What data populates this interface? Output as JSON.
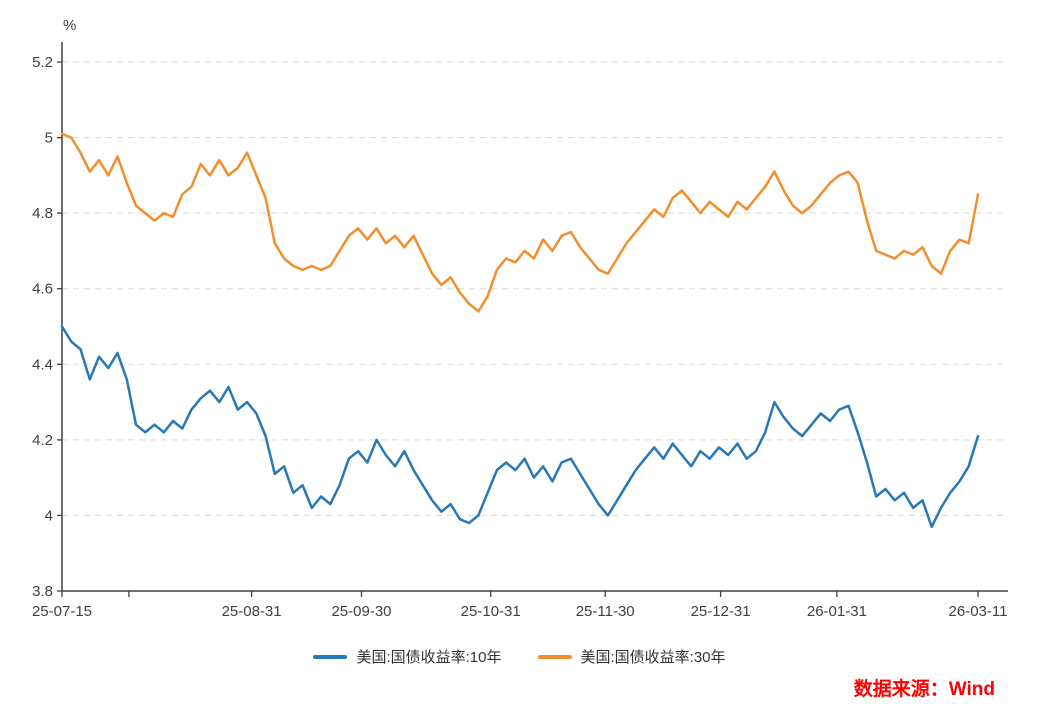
{
  "chart_data": {
    "type": "line",
    "title": "",
    "ylabel": "%",
    "xlabel": "",
    "ylim": [
      3.8,
      5.2
    ],
    "yticks": [
      3.8,
      4.0,
      4.2,
      4.4,
      4.6,
      4.8,
      5.0,
      5.2
    ],
    "ytick_labels": [
      "3.8",
      "4",
      "4.2",
      "4.4",
      "4.6",
      "4.8",
      "5",
      "5.2"
    ],
    "xtick_labels": [
      "25-07-15",
      "25-08-31",
      "25-09-30",
      "25-10-31",
      "25-11-30",
      "25-12-31",
      "26-01-31",
      "26-03-11"
    ],
    "xtick_positions": [
      0,
      0.207,
      0.327,
      0.468,
      0.593,
      0.719,
      0.846,
      1.0
    ],
    "minor_xtick_positions": [
      0.073
    ],
    "grid": "horizontal-dashed",
    "legend_position": "bottom",
    "axis_color": "#404040",
    "grid_color": "#d9d9d9",
    "series": [
      {
        "name": "美国:国债收益率:10年",
        "color": "#2878B5",
        "values": [
          4.5,
          4.46,
          4.44,
          4.36,
          4.42,
          4.39,
          4.43,
          4.36,
          4.24,
          4.22,
          4.24,
          4.22,
          4.25,
          4.23,
          4.28,
          4.31,
          4.33,
          4.3,
          4.34,
          4.28,
          4.3,
          4.27,
          4.21,
          4.11,
          4.13,
          4.06,
          4.08,
          4.02,
          4.05,
          4.03,
          4.08,
          4.15,
          4.17,
          4.14,
          4.2,
          4.16,
          4.13,
          4.17,
          4.12,
          4.08,
          4.04,
          4.01,
          4.03,
          3.99,
          3.98,
          4.0,
          4.06,
          4.12,
          4.14,
          4.12,
          4.15,
          4.1,
          4.13,
          4.09,
          4.14,
          4.15,
          4.11,
          4.07,
          4.03,
          4.0,
          4.04,
          4.08,
          4.12,
          4.15,
          4.18,
          4.15,
          4.19,
          4.16,
          4.13,
          4.17,
          4.15,
          4.18,
          4.16,
          4.19,
          4.15,
          4.17,
          4.22,
          4.3,
          4.26,
          4.23,
          4.21,
          4.24,
          4.27,
          4.25,
          4.28,
          4.29,
          4.22,
          4.14,
          4.05,
          4.07,
          4.04,
          4.06,
          4.02,
          4.04,
          3.97,
          4.02,
          4.06,
          4.09,
          4.13,
          4.21
        ]
      },
      {
        "name": "美国:国债收益率:30年",
        "color": "#F28E2C",
        "values": [
          5.01,
          5.0,
          4.96,
          4.91,
          4.94,
          4.9,
          4.95,
          4.88,
          4.82,
          4.8,
          4.78,
          4.8,
          4.79,
          4.85,
          4.87,
          4.93,
          4.9,
          4.94,
          4.9,
          4.92,
          4.96,
          4.9,
          4.84,
          4.72,
          4.68,
          4.66,
          4.65,
          4.66,
          4.65,
          4.66,
          4.7,
          4.74,
          4.76,
          4.73,
          4.76,
          4.72,
          4.74,
          4.71,
          4.74,
          4.69,
          4.64,
          4.61,
          4.63,
          4.59,
          4.56,
          4.54,
          4.58,
          4.65,
          4.68,
          4.67,
          4.7,
          4.68,
          4.73,
          4.7,
          4.74,
          4.75,
          4.71,
          4.68,
          4.65,
          4.64,
          4.68,
          4.72,
          4.75,
          4.78,
          4.81,
          4.79,
          4.84,
          4.86,
          4.83,
          4.8,
          4.83,
          4.81,
          4.79,
          4.83,
          4.81,
          4.84,
          4.87,
          4.91,
          4.86,
          4.82,
          4.8,
          4.82,
          4.85,
          4.88,
          4.9,
          4.91,
          4.88,
          4.78,
          4.7,
          4.69,
          4.68,
          4.7,
          4.69,
          4.71,
          4.66,
          4.64,
          4.7,
          4.73,
          4.72,
          4.85
        ]
      }
    ]
  },
  "source": {
    "text": "数据来源：Wind",
    "color": "#FF0000"
  }
}
